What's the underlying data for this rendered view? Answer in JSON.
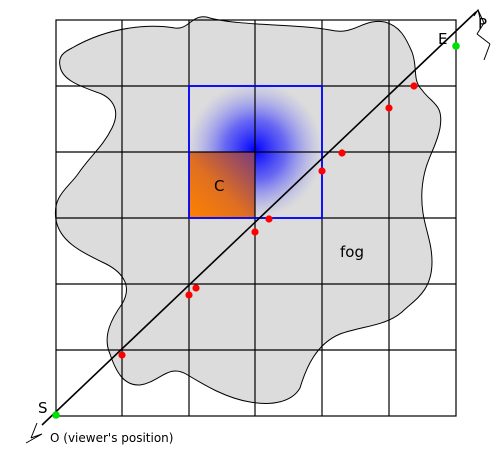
{
  "labels": {
    "start": "S",
    "end": "E",
    "point": "P",
    "cell": "C",
    "fog": "fog",
    "viewer": "O (viewer's position)"
  },
  "colors": {
    "fog": "#dcdcdc",
    "grid": "#000000",
    "highlight_box": "#0000ff",
    "density": "#0000ff",
    "cell_fill": "#ff7f00",
    "intersection": "#ff0000",
    "endpoint": "#00e000"
  }
}
